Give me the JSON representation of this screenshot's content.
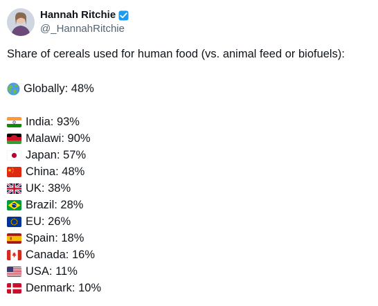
{
  "author": {
    "display_name": "Hannah Ritchie",
    "handle": "@_HannahRitchie",
    "verified_icon": "verified-badge-icon",
    "verified_color": "#1d9bf0"
  },
  "tweet": {
    "intro": "Share of cereals used for human food (vs. animal feed or biofuels):",
    "global": {
      "icon": "globe-americas-icon",
      "text": "Globally: 48%"
    },
    "countries": [
      {
        "flag": "india-flag-icon",
        "text": "India: 93%"
      },
      {
        "flag": "malawi-flag-icon",
        "text": "Malawi: 90%"
      },
      {
        "flag": "japan-flag-icon",
        "text": "Japan: 57%"
      },
      {
        "flag": "china-flag-icon",
        "text": "China: 48%"
      },
      {
        "flag": "uk-flag-icon",
        "text": "UK: 38%"
      },
      {
        "flag": "brazil-flag-icon",
        "text": "Brazil: 28%"
      },
      {
        "flag": "eu-flag-icon",
        "text": "EU: 26%"
      },
      {
        "flag": "spain-flag-icon",
        "text": "Spain: 18%"
      },
      {
        "flag": "canada-flag-icon",
        "text": "Canada: 16%"
      },
      {
        "flag": "usa-flag-icon",
        "text": "USA: 11%"
      },
      {
        "flag": "denmark-flag-icon",
        "text": "Denmark: 10%"
      }
    ]
  }
}
